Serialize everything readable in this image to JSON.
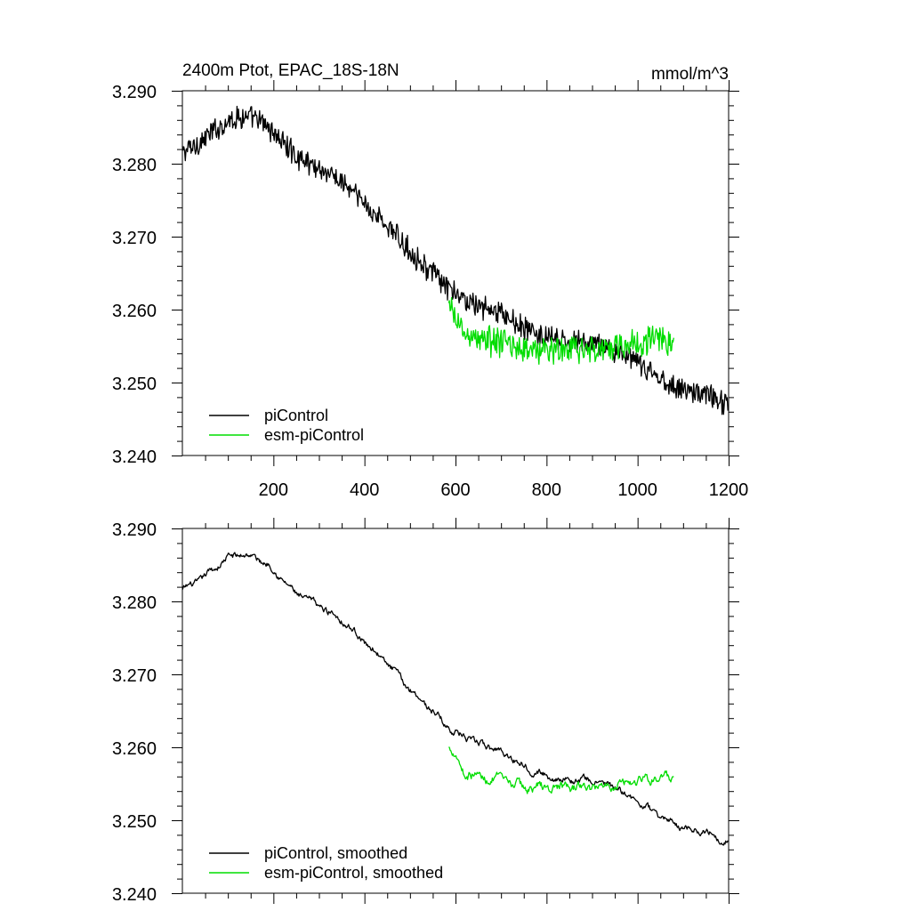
{
  "chart_data": [
    {
      "type": "line",
      "title": "2400m Ptot, EPAC_18S-18N",
      "units": "mmol/m^3",
      "xlim": [
        0,
        1200
      ],
      "ylim": [
        3.24,
        3.29
      ],
      "x_ticks": [
        200,
        400,
        600,
        800,
        1000,
        1200
      ],
      "x_tick_labels": [
        "200",
        "400",
        "600",
        "800",
        "1000",
        "1200"
      ],
      "y_ticks": [
        3.24,
        3.25,
        3.26,
        3.27,
        3.28,
        3.29
      ],
      "y_tick_labels": [
        "3.240",
        "3.250",
        "3.260",
        "3.270",
        "3.280",
        "3.290"
      ],
      "legend_position": "bottom-left",
      "noise": "raw",
      "series": [
        {
          "name": "piControl",
          "color": "#000000",
          "x": [
            0,
            40,
            80,
            100,
            130,
            160,
            190,
            220,
            250,
            300,
            350,
            400,
            450,
            500,
            550,
            580,
            600,
            650,
            700,
            750,
            800,
            850,
            900,
            950,
            1000,
            1050,
            1100,
            1150,
            1200
          ],
          "values": [
            3.2815,
            3.283,
            3.285,
            3.286,
            3.2865,
            3.286,
            3.285,
            3.283,
            3.281,
            3.2795,
            3.2775,
            3.2745,
            3.2715,
            3.268,
            3.265,
            3.263,
            3.262,
            3.2605,
            3.2595,
            3.2575,
            3.256,
            3.2555,
            3.2555,
            3.2545,
            3.2525,
            3.2505,
            3.249,
            3.2485,
            3.247
          ]
        },
        {
          "name": "esm-piControl",
          "color": "#00dd00",
          "x": [
            585,
            600,
            620,
            650,
            700,
            750,
            800,
            850,
            900,
            950,
            1000,
            1050,
            1080
          ],
          "values": [
            3.26,
            3.259,
            3.2565,
            3.256,
            3.2555,
            3.2545,
            3.2545,
            3.2545,
            3.2545,
            3.255,
            3.2555,
            3.256,
            3.2555
          ]
        }
      ]
    },
    {
      "type": "line",
      "title": "",
      "units": "",
      "xlim": [
        0,
        1200
      ],
      "ylim": [
        3.24,
        3.29
      ],
      "x_ticks": [
        200,
        400,
        600,
        800,
        1000,
        1200
      ],
      "x_tick_labels": [],
      "y_ticks": [
        3.24,
        3.25,
        3.26,
        3.27,
        3.28,
        3.29
      ],
      "y_tick_labels": [
        "3.240",
        "3.250",
        "3.260",
        "3.270",
        "3.280",
        "3.290"
      ],
      "legend_position": "bottom-left",
      "noise": "smoothed",
      "series": [
        {
          "name": "piControl, smoothed",
          "color": "#000000",
          "x": [
            0,
            40,
            80,
            100,
            130,
            160,
            190,
            220,
            250,
            300,
            350,
            400,
            450,
            500,
            550,
            580,
            600,
            650,
            700,
            750,
            800,
            850,
            900,
            950,
            1000,
            1050,
            1100,
            1150,
            1200
          ],
          "values": [
            3.2815,
            3.283,
            3.285,
            3.286,
            3.2865,
            3.286,
            3.285,
            3.283,
            3.281,
            3.2795,
            3.2775,
            3.2745,
            3.2715,
            3.268,
            3.265,
            3.263,
            3.262,
            3.2605,
            3.2595,
            3.2575,
            3.256,
            3.2555,
            3.2555,
            3.2545,
            3.2525,
            3.2505,
            3.249,
            3.2485,
            3.247
          ]
        },
        {
          "name": "esm-piControl, smoothed",
          "color": "#00dd00",
          "x": [
            585,
            600,
            620,
            650,
            700,
            750,
            800,
            850,
            900,
            950,
            1000,
            1050,
            1080
          ],
          "values": [
            3.26,
            3.259,
            3.2565,
            3.256,
            3.2555,
            3.2545,
            3.2545,
            3.2545,
            3.2545,
            3.255,
            3.2555,
            3.256,
            3.2555
          ]
        }
      ]
    }
  ]
}
